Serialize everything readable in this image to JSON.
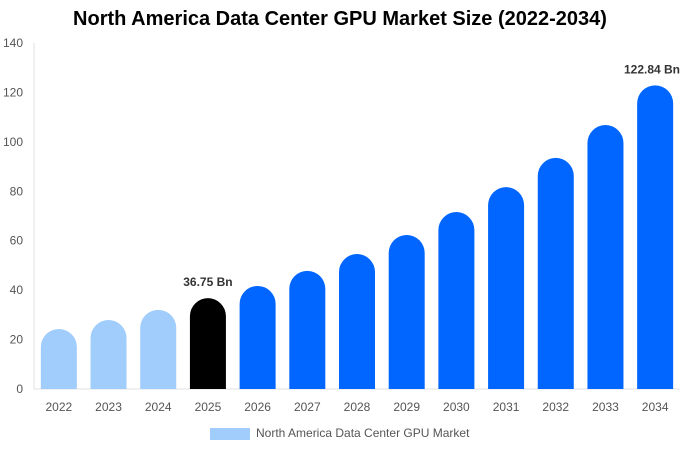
{
  "chart_data": {
    "type": "bar",
    "title": "North America Data Center GPU Market Size (2022-2034)",
    "categories": [
      "2022",
      "2023",
      "2024",
      "2025",
      "2026",
      "2027",
      "2028",
      "2029",
      "2030",
      "2031",
      "2032",
      "2033",
      "2034"
    ],
    "series": [
      {
        "name": "North America Data Center GPU Market",
        "values": [
          24.3,
          27.9,
          32.0,
          36.75,
          41.7,
          47.8,
          54.6,
          62.3,
          71.6,
          81.7,
          93.5,
          106.8,
          122.84
        ]
      }
    ],
    "data_labels": {
      "3": "36.75 Bn",
      "12": "122.84 Bn"
    },
    "bar_colors": [
      "#a0cdfc",
      "#a0cdfc",
      "#a0cdfc",
      "#000000",
      "#0066ff",
      "#0066ff",
      "#0066ff",
      "#0066ff",
      "#0066ff",
      "#0066ff",
      "#0066ff",
      "#0066ff",
      "#0066ff"
    ],
    "legend_color": "#a0cdfc",
    "ylim": [
      0,
      140
    ],
    "yticks": [
      0,
      20,
      40,
      60,
      80,
      100,
      120,
      140
    ],
    "grid": false,
    "legend_position": "bottom",
    "xlabel": "",
    "ylabel": ""
  }
}
